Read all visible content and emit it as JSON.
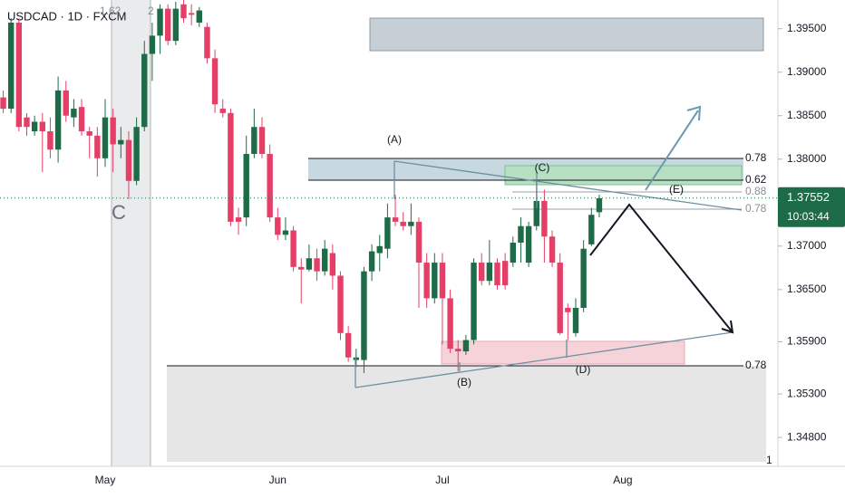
{
  "chart_data": {
    "type": "candlestick",
    "title": "USDCAD · 1D · FXCM",
    "categories": [
      null,
      null,
      null,
      null,
      null,
      null,
      null,
      null,
      null,
      null,
      null,
      null,
      null,
      "May",
      null,
      null,
      null,
      null,
      null,
      null,
      null,
      null,
      null,
      null,
      null,
      null,
      null,
      null,
      null,
      null,
      null,
      null,
      null,
      null,
      null,
      "Jun",
      null,
      null,
      null,
      null,
      null,
      null,
      null,
      null,
      null,
      null,
      null,
      null,
      null,
      null,
      null,
      null,
      null,
      null,
      null,
      null,
      "Jul",
      null,
      null,
      null,
      null,
      null,
      null,
      null,
      null,
      null,
      null,
      null,
      null,
      null,
      null,
      null,
      null,
      null,
      null,
      null,
      null,
      null,
      null,
      "Aug",
      null,
      null,
      null,
      null,
      null,
      null,
      null,
      null,
      null,
      null,
      null,
      null,
      null,
      null,
      null,
      null,
      null,
      null,
      null
    ],
    "open": [
      1.3871,
      1.3858,
      1.3957,
      1.3848,
      1.3832,
      1.3843,
      1.3832,
      1.3811,
      1.3879,
      1.3848,
      1.386,
      1.3832,
      1.3827,
      1.3801,
      1.3848,
      1.3817,
      1.3822,
      1.3775,
      1.3837,
      1.3921,
      1.3942,
      1.3973,
      1.3936,
      1.3978,
      1.3968,
      1.3957,
      1.3952,
      1.3916,
      1.3858,
      1.3853,
      1.3733,
      1.3733,
      1.3806,
      1.3837,
      1.3806,
      1.3733,
      1.3713,
      1.3718,
      1.3676,
      1.3673,
      1.3686,
      1.3671,
      1.3692,
      1.3666,
      1.36,
      1.3569,
      1.3569,
      1.3671,
      1.3692,
      1.3697,
      1.3733,
      1.3728,
      1.3723,
      1.3728,
      1.3681,
      1.364,
      1.3681,
      1.364,
      1.3582,
      1.3579,
      1.3592,
      1.3681,
      1.366,
      1.3681,
      1.3683,
      1.3681,
      1.3704,
      1.3681,
      1.3723,
      1.3752,
      1.3711,
      1.3681,
      1.3629,
      1.36,
      1.3629,
      1.3702,
      1.3739,
      null,
      null,
      null,
      null,
      null,
      null,
      null,
      null,
      null,
      null,
      null,
      null,
      null,
      null,
      null,
      null,
      null,
      null,
      null,
      null,
      null,
      null
    ],
    "high": [
      1.3879,
      1.3962,
      1.3962,
      1.3853,
      1.385,
      1.3853,
      1.3848,
      1.3895,
      1.389,
      1.3869,
      1.3869,
      1.3837,
      1.3837,
      1.3869,
      1.3858,
      1.3837,
      1.3832,
      1.3848,
      1.3936,
      1.3957,
      1.3978,
      1.3978,
      1.3981,
      1.3983,
      1.3978,
      1.3975,
      1.3957,
      1.3926,
      1.3869,
      1.3858,
      1.3744,
      1.3827,
      1.3858,
      1.3848,
      1.3817,
      1.3744,
      1.3733,
      1.3723,
      1.3686,
      1.3702,
      1.3697,
      1.3707,
      1.3702,
      1.3671,
      1.3608,
      1.3582,
      1.3676,
      1.3702,
      1.3713,
      1.3749,
      1.3759,
      1.3739,
      1.3749,
      1.3733,
      1.3692,
      1.3692,
      1.3692,
      1.365,
      1.3592,
      1.3598,
      1.3686,
      1.3692,
      1.3707,
      1.3686,
      1.3692,
      1.3711,
      1.3733,
      1.3728,
      1.3775,
      1.3765,
      1.3718,
      1.3692,
      1.3634,
      1.364,
      1.3707,
      1.3744,
      1.3759,
      null,
      null,
      null,
      null,
      null,
      null,
      null,
      null,
      null,
      null,
      null,
      null,
      null,
      null,
      null,
      null,
      null,
      null,
      null,
      null,
      null,
      null
    ],
    "low": [
      1.3853,
      1.3853,
      1.3832,
      1.3827,
      1.3827,
      1.3785,
      1.3801,
      1.3796,
      1.3843,
      1.3837,
      1.3827,
      1.3801,
      1.378,
      1.3791,
      1.3785,
      1.3801,
      1.3754,
      1.377,
      1.3832,
      1.389,
      1.3921,
      1.3931,
      1.3931,
      1.3957,
      1.3954,
      1.3952,
      1.391,
      1.3853,
      1.3848,
      1.3723,
      1.3713,
      1.3723,
      1.3801,
      1.3801,
      1.3728,
      1.3707,
      1.3707,
      1.3671,
      1.3634,
      1.3671,
      1.366,
      1.3666,
      1.365,
      1.3592,
      1.3567,
      1.3561,
      1.3554,
      1.366,
      1.3671,
      1.3686,
      1.3723,
      1.3718,
      1.3713,
      1.3629,
      1.3629,
      1.3634,
      1.3587,
      1.3577,
      1.3556,
      1.3575,
      1.3587,
      1.3655,
      1.3655,
      1.365,
      1.365,
      1.3676,
      1.3681,
      1.3676,
      1.3718,
      1.3681,
      1.3676,
      1.3598,
      1.3592,
      1.3596,
      1.3624,
      1.37,
      1.3733,
      null,
      null,
      null,
      null,
      null,
      null,
      null,
      null,
      null,
      null,
      null,
      null,
      null,
      null,
      null,
      null,
      null,
      null,
      null,
      null,
      null,
      null
    ],
    "close": [
      1.3858,
      1.3957,
      1.3837,
      1.3837,
      1.3843,
      1.3832,
      1.3811,
      1.3879,
      1.385,
      1.3858,
      1.3832,
      1.3827,
      1.3801,
      1.3848,
      1.3817,
      1.3822,
      1.3775,
      1.3837,
      1.3921,
      1.3942,
      1.3973,
      1.3936,
      1.3973,
      1.3962,
      1.3966,
      1.3971,
      1.3916,
      1.3863,
      1.3853,
      1.3728,
      1.3728,
      1.3806,
      1.3837,
      1.3806,
      1.3733,
      1.3713,
      1.3718,
      1.3676,
      1.3673,
      1.3686,
      1.3671,
      1.3697,
      1.3666,
      1.36,
      1.3572,
      1.3572,
      1.3671,
      1.3694,
      1.37,
      1.3733,
      1.3728,
      1.3723,
      1.3728,
      1.3681,
      1.364,
      1.3681,
      1.364,
      1.3582,
      1.3579,
      1.3592,
      1.3681,
      1.366,
      1.3681,
      1.3655,
      1.3655,
      1.3704,
      1.3723,
      1.3723,
      1.3752,
      1.3711,
      1.3681,
      1.36,
      1.3624,
      1.3629,
      1.3697,
      1.3736,
      1.3755,
      null,
      null,
      null,
      null,
      null,
      null,
      null,
      null,
      null,
      null,
      null,
      null,
      null,
      null,
      null,
      null,
      null,
      null,
      null,
      null,
      null,
      null
    ],
    "up_color": "#1e6b47",
    "down_color": "#e53f67",
    "ylim": [
      1.3452,
      1.3983
    ],
    "yticks": [
      {
        "value": 1.395,
        "label": "1.39500"
      },
      {
        "value": 1.39,
        "label": "1.39000"
      },
      {
        "value": 1.385,
        "label": "1.38500"
      },
      {
        "value": 1.38,
        "label": "1.38000"
      },
      {
        "value": 1.37,
        "label": "1.37000"
      },
      {
        "value": 1.365,
        "label": "1.36500"
      },
      {
        "value": 1.359,
        "label": "1.35900"
      },
      {
        "value": 1.353,
        "label": "1.35300"
      },
      {
        "value": 1.348,
        "label": "1.34800"
      }
    ],
    "last_price": 1.37552,
    "countdown": "10:03:44",
    "wave_labels": [
      "(A)",
      "(B)",
      "(C)",
      "(D)",
      "(E)"
    ],
    "pattern_label": "C",
    "fib_labels": [
      "0.78",
      "0.62",
      "0.88",
      "0.78",
      "0.78",
      "1",
      "1.62",
      "2"
    ]
  }
}
